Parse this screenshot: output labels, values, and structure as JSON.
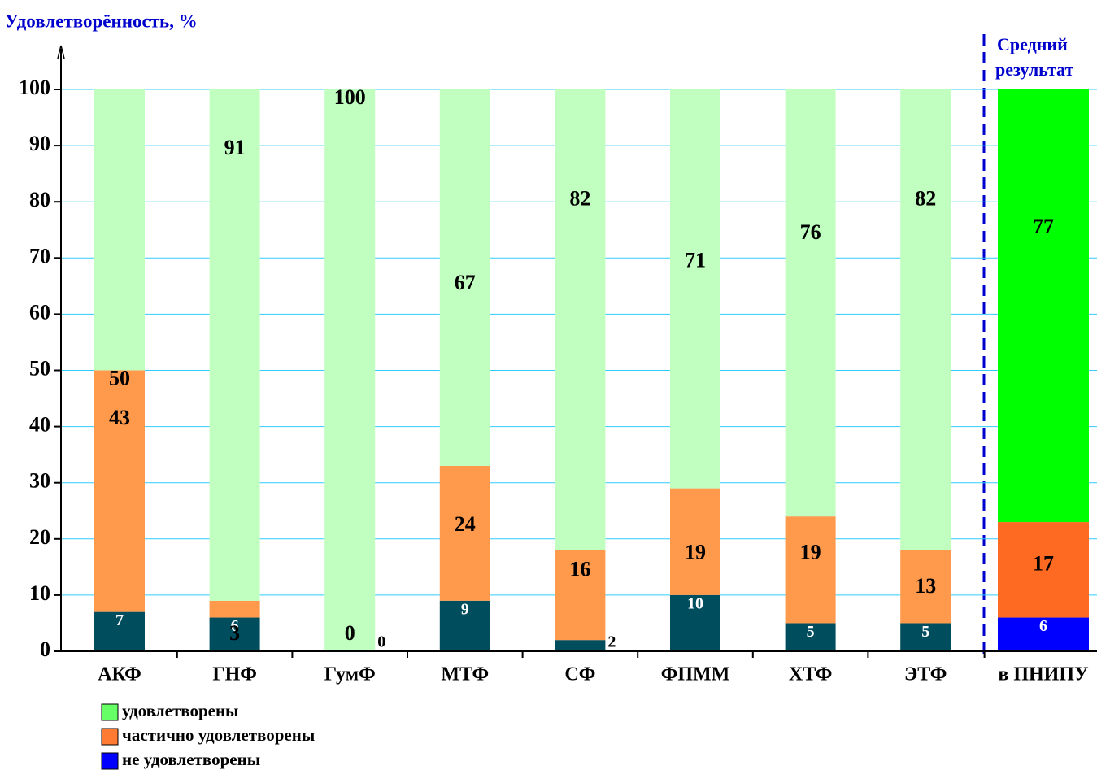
{
  "chart_data": {
    "type": "stacked_bar",
    "y_axis_label": "Удовлетворённость, %",
    "annotation": [
      "Средний",
      "результат"
    ],
    "categories": [
      "АКФ",
      "ГНФ",
      "ГумФ",
      "МТФ",
      "СФ",
      "ФПММ",
      "ХТФ",
      "ЭТФ",
      "в ПНИПУ"
    ],
    "series": [
      {
        "name": "не удовлетворены",
        "color": "#0000ff",
        "point_colors": [
          "#004d5e",
          "#004d5e",
          "#004d5e",
          "#004d5e",
          "#004d5e",
          "#004d5e",
          "#004d5e",
          "#004d5e",
          "#0000ff"
        ],
        "values": [
          7,
          6,
          0,
          9,
          2,
          10,
          5,
          5,
          6
        ]
      },
      {
        "name": "частично удовлетворены",
        "color": "#ff7a33",
        "point_colors": [
          "#ff9a4d",
          "#ff9a4d",
          "#ff9a4d",
          "#ff9a4d",
          "#ff9a4d",
          "#ff9a4d",
          "#ff9a4d",
          "#ff9a4d",
          "#ff6a22"
        ],
        "values": [
          43,
          3,
          0,
          24,
          16,
          19,
          19,
          13,
          17
        ]
      },
      {
        "name": "удовлетворены",
        "color": "#66ff66",
        "point_colors": [
          "#c0ffc0",
          "#c0ffc0",
          "#c0ffc0",
          "#c0ffc0",
          "#c0ffc0",
          "#c0ffc0",
          "#c0ffc0",
          "#c0ffc0",
          "#00ff00"
        ],
        "values": [
          50,
          91,
          100,
          67,
          82,
          71,
          76,
          82,
          77
        ]
      }
    ],
    "ylim": [
      0,
      100
    ],
    "yticks": [
      0,
      10,
      20,
      30,
      40,
      50,
      60,
      70,
      80,
      90,
      100
    ],
    "grid": true
  }
}
